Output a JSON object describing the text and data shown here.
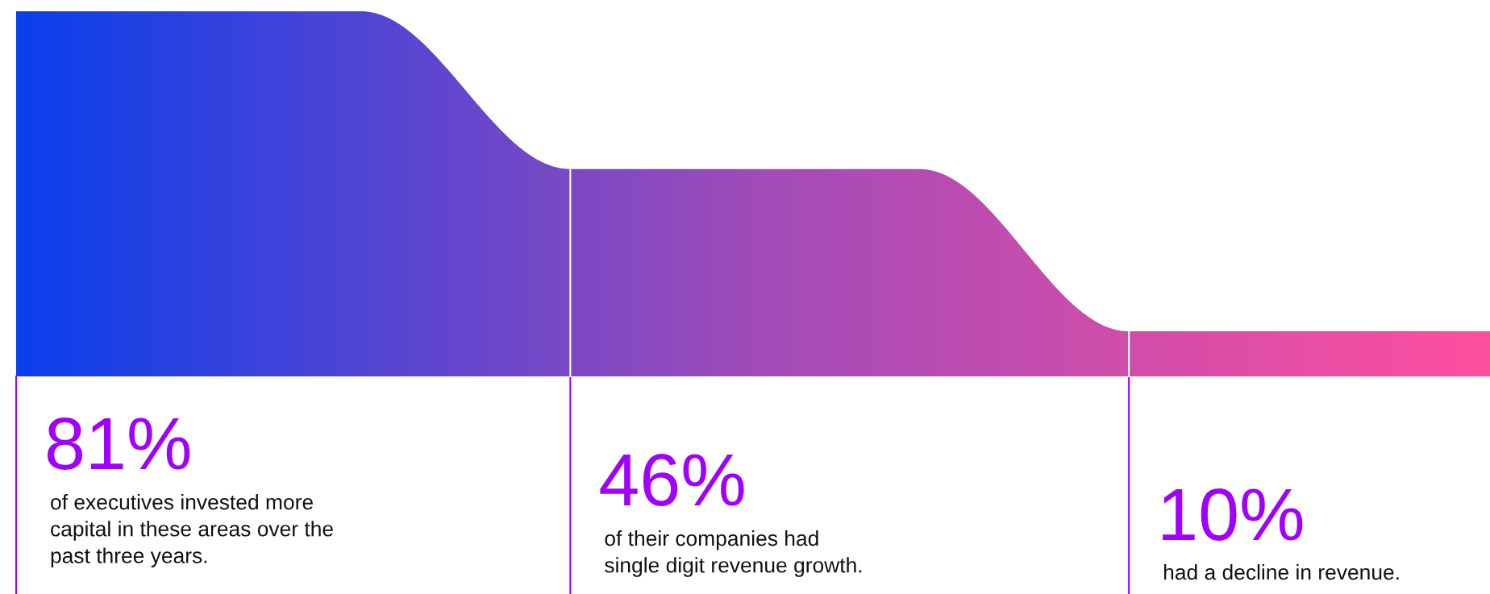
{
  "chart_data": {
    "type": "other",
    "categories": [
      "of executives invested more\ncapital in these areas over the\npast three years.",
      "of their companies had\nsingle digit revenue growth.",
      "had a decline in revenue."
    ],
    "values": [
      81,
      46,
      10
    ],
    "value_labels": [
      "81%",
      "46%",
      "10%"
    ],
    "colors": [
      "#0a3fec",
      "#a04cb8",
      "#ff4f9e"
    ]
  }
}
